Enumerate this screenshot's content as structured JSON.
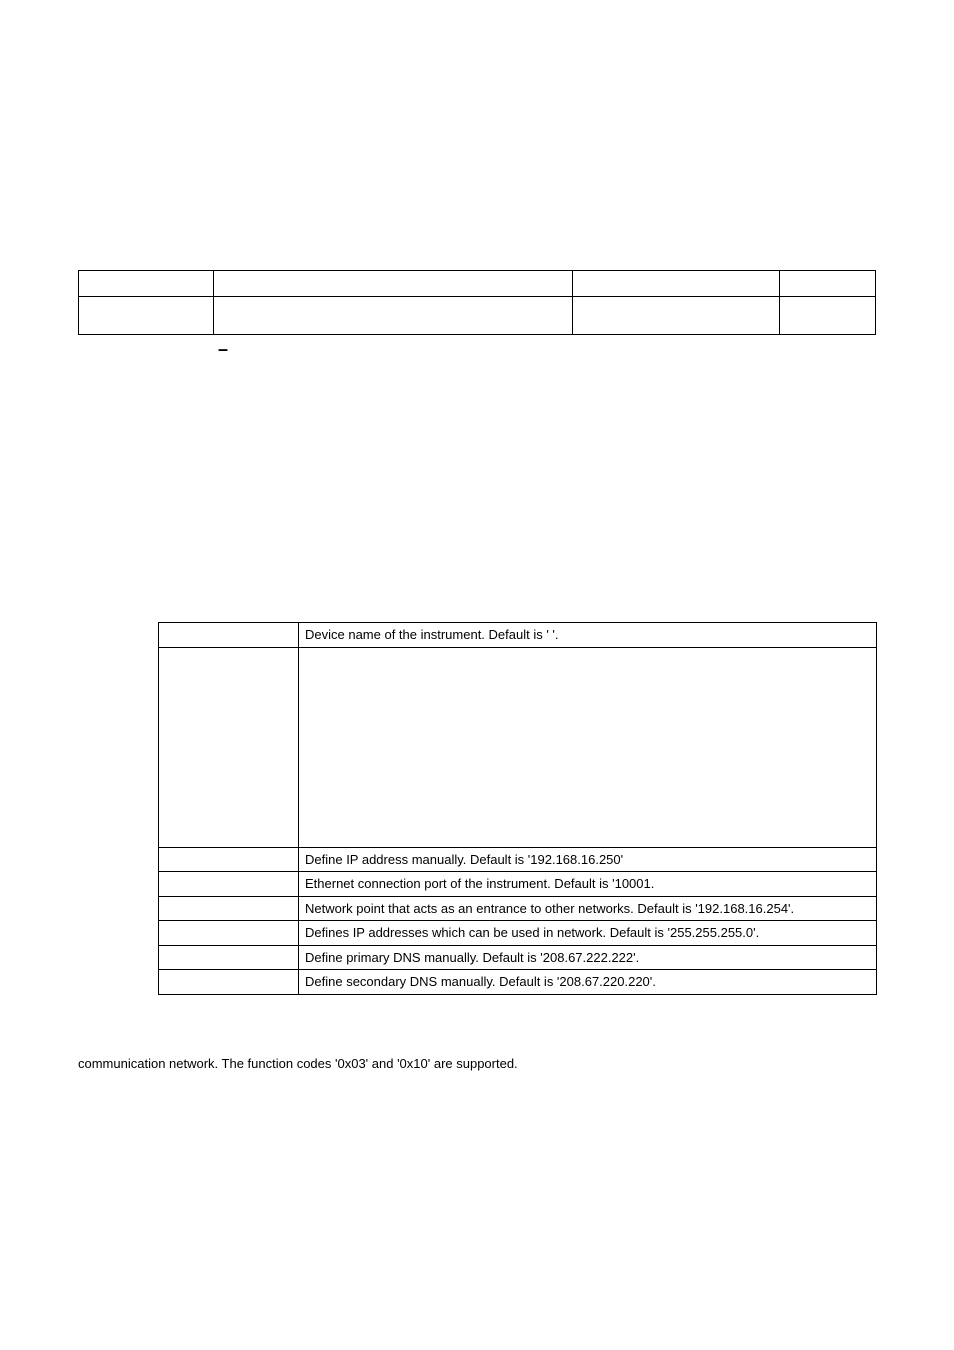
{
  "tbl1": {
    "rows": [
      {
        "c1": "",
        "c2": "",
        "c3": "",
        "c4": ""
      },
      {
        "c1": "",
        "c2": "",
        "c3": "",
        "c4": ""
      }
    ]
  },
  "dash": "–",
  "tbl2": {
    "rows": [
      {
        "c1": "",
        "c2": "Device name of the instrument. Default is ' '."
      },
      {
        "c1": "",
        "c2": ""
      },
      {
        "c1": "",
        "c2": "Define IP address manually. Default is '192.168.16.250'"
      },
      {
        "c1": "",
        "c2": "Ethernet connection port of the instrument. Default is '10001."
      },
      {
        "c1": "",
        "c2": "Network point that acts as an entrance to other networks. Default is '192.168.16.254'."
      },
      {
        "c1": "",
        "c2": "Defines IP addresses which can be used in network. Default is '255.255.255.0'."
      },
      {
        "c1": "",
        "c2": "Define primary DNS manually. Default is '208.67.222.222'."
      },
      {
        "c1": "",
        "c2": "Define secondary DNS manually. Default is '208.67.220.220'."
      }
    ]
  },
  "paragraph": "communication network. The function codes '0x03' and '0x10' are supported."
}
